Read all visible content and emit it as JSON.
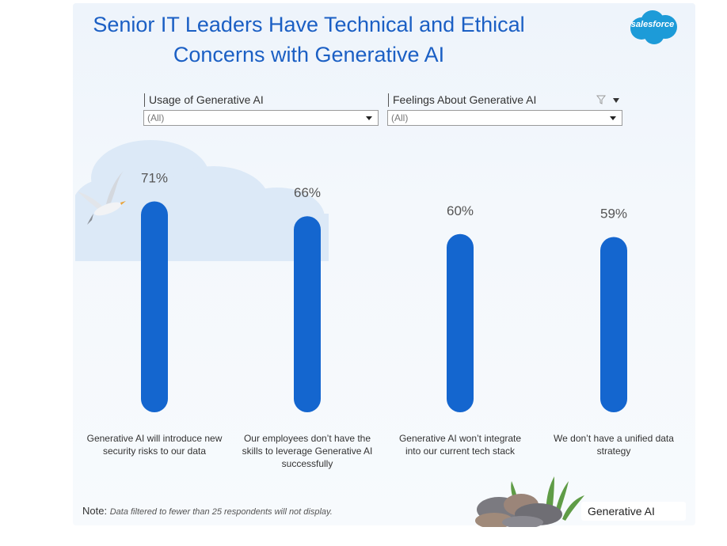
{
  "title": "Senior IT Leaders Have Technical and Ethical Concerns with Generative AI",
  "logo": {
    "text": "salesforce",
    "color": "#1d9bd8"
  },
  "filters": [
    {
      "label": "Usage of Generative AI",
      "value": "(All)"
    },
    {
      "label": "Feelings About Generative AI",
      "value": "(All)"
    }
  ],
  "chart_data": {
    "type": "bar",
    "orientation": "vertical",
    "categories": [
      "Generative AI will introduce new security risks to our data",
      "Our employees don’t have the skills to leverage Generative AI successfully",
      "Generative AI won’t integrate into our current tech stack",
      "We don’t have a unified data strategy"
    ],
    "values": [
      71,
      66,
      60,
      59
    ],
    "value_labels": [
      "71%",
      "66%",
      "60%",
      "59%"
    ],
    "unit": "%",
    "bar_color": "#1466cf",
    "grid": false,
    "legend": "none"
  },
  "note": {
    "prefix": "Note:",
    "text": "Data filtered to fewer than 25 respondents will not display."
  },
  "tag": "Generative AI"
}
